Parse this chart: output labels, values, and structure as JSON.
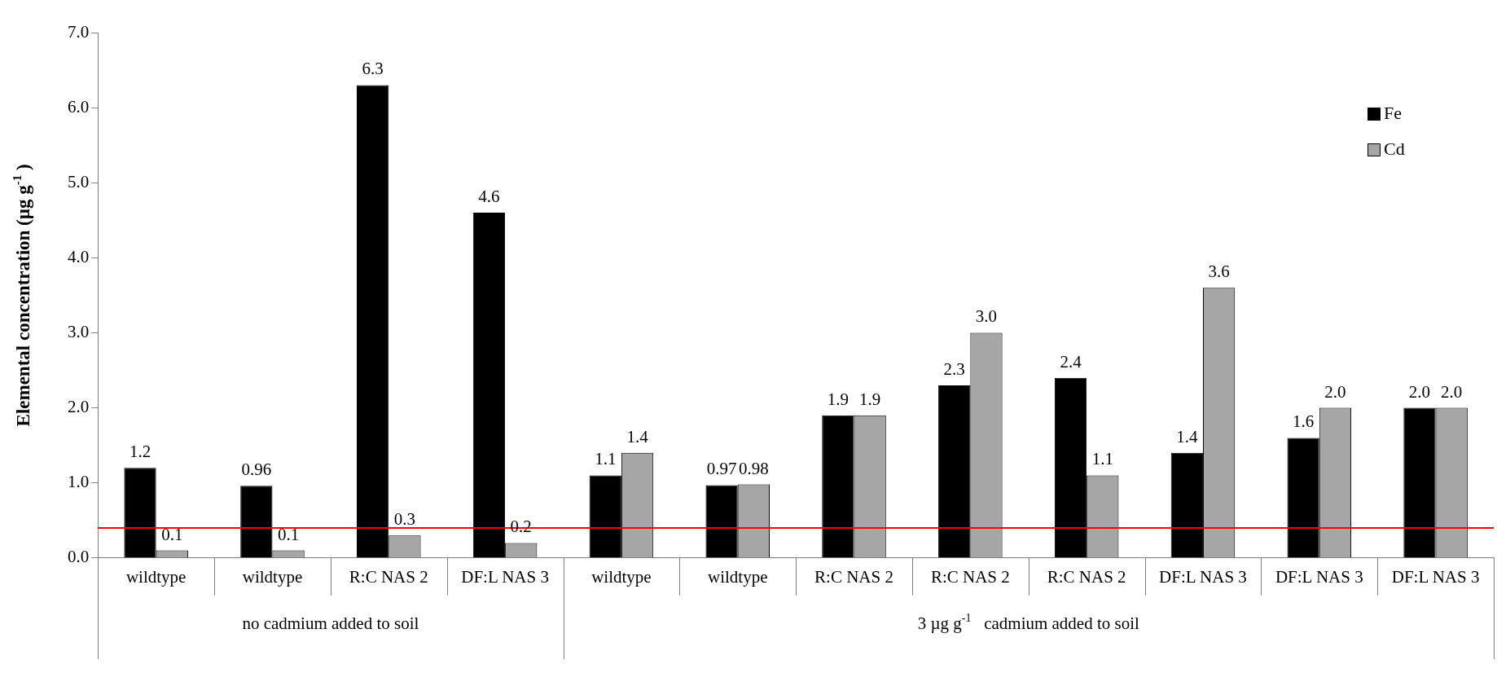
{
  "chart_data": {
    "type": "bar",
    "ylabel": "Elemental concentration (µg g$^{-1}$ )",
    "categories": [
      "wildtype",
      "wildtype",
      "R:C NAS 2",
      "DF:L NAS 3",
      "wildtype",
      "wildtype",
      "R:C NAS 2",
      "R:C NAS 2",
      "R:C NAS 2",
      "DF:L NAS 3",
      "DF:L NAS 3",
      "DF:L NAS 3"
    ],
    "series": [
      {
        "name": "Fe",
        "color": "#000000",
        "values": [
          1.2,
          0.96,
          6.3,
          4.6,
          1.1,
          0.97,
          1.9,
          2.3,
          2.4,
          1.4,
          1.6,
          2.0
        ],
        "value_labels": [
          "1.2",
          "0.96",
          "6.3",
          "4.6",
          "1.1",
          "0.97",
          "1.9",
          "2.3",
          "2.4",
          "1.4",
          "1.6",
          "2.0"
        ]
      },
      {
        "name": "Cd",
        "color": "#a6a6a6",
        "values": [
          0.1,
          0.1,
          0.3,
          0.2,
          1.4,
          0.98,
          1.9,
          3.0,
          1.1,
          3.6,
          2.0,
          2.0
        ],
        "value_labels": [
          "0.1",
          "0.1",
          "0.3",
          "0.2",
          "1.4",
          "0.98",
          "1.9",
          "3.0",
          "1.1",
          "3.6",
          "2.0",
          "2.0"
        ]
      }
    ],
    "ylim": [
      0,
      7
    ],
    "yticks": [
      {
        "value": 0,
        "label": "0.0"
      },
      {
        "value": 1,
        "label": "1.0"
      },
      {
        "value": 2,
        "label": "2.0"
      },
      {
        "value": 3,
        "label": "3.0"
      },
      {
        "value": 4,
        "label": "4.0"
      },
      {
        "value": 5,
        "label": "5.0"
      },
      {
        "value": 6,
        "label": "6.0"
      },
      {
        "value": 7,
        "label": "7.0"
      }
    ],
    "ref_lines": [
      {
        "axis": "y",
        "value": 0.4,
        "color": "#ff0000"
      }
    ],
    "annotations": [
      "no cadmium added to soil",
      "3 µg g$^{-1}$   cadmium added to soil"
    ],
    "legend": "top right",
    "grid": false
  }
}
